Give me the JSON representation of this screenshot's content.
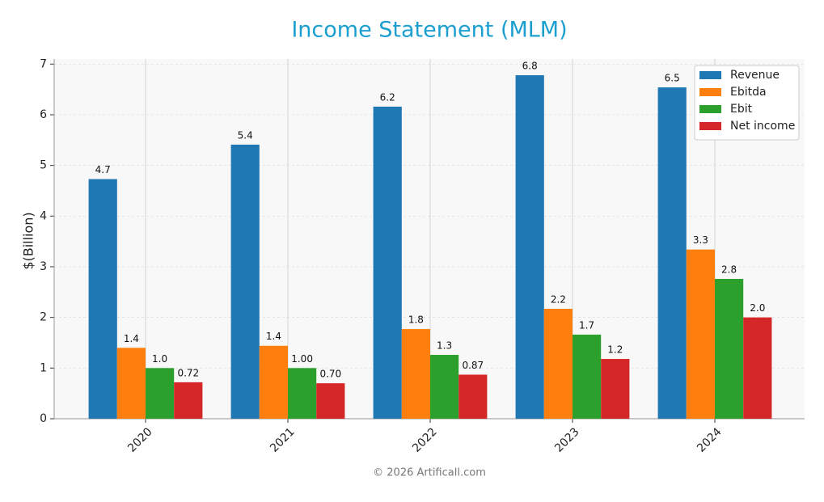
{
  "chart_data": {
    "type": "bar",
    "title": "Income Statement (MLM)",
    "y_label": "$(Billion)",
    "footer": "© 2026 Artificall.com",
    "categories": [
      "2020",
      "2021",
      "2022",
      "2023",
      "2024"
    ],
    "series": [
      {
        "name": "Revenue",
        "color": "#1f77b4",
        "values": [
          4.73,
          5.41,
          6.16,
          6.78,
          6.54
        ],
        "value_labels": [
          "4.7",
          "5.4",
          "6.2",
          "6.8",
          "6.5"
        ]
      },
      {
        "name": "Ebitda",
        "color": "#ff7f0e",
        "values": [
          1.4,
          1.44,
          1.77,
          2.17,
          3.34
        ],
        "value_labels": [
          "1.4",
          "1.4",
          "1.8",
          "2.2",
          "3.3"
        ]
      },
      {
        "name": "Ebit",
        "color": "#2ca02c",
        "values": [
          1.0,
          1.0,
          1.26,
          1.66,
          2.76
        ],
        "value_labels": [
          "1.0",
          "1.00",
          "1.3",
          "1.7",
          "2.8"
        ]
      },
      {
        "name": "Net income",
        "color": "#d62728",
        "values": [
          0.72,
          0.7,
          0.87,
          1.18,
          2.0
        ],
        "value_labels": [
          "0.72",
          "0.70",
          "0.87",
          "1.2",
          "2.0"
        ]
      }
    ],
    "ylim": [
      0,
      7.1
    ],
    "yticks": [
      0,
      1,
      2,
      3,
      4,
      5,
      6,
      7
    ],
    "grid": true,
    "legend": "upper right"
  }
}
